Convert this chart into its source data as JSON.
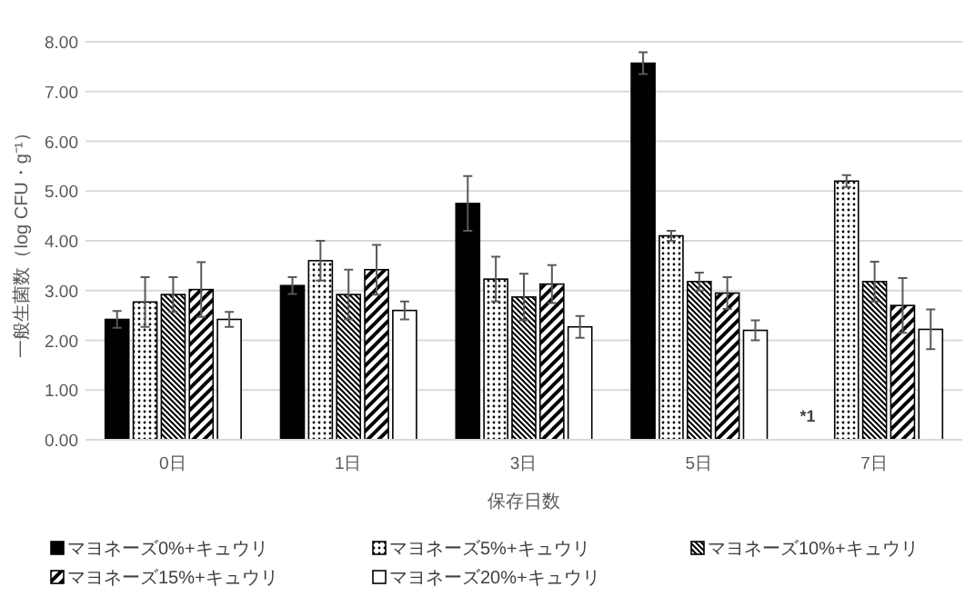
{
  "chart_data": {
    "type": "bar",
    "ylabel": "一般生菌数（log CFU・g⁻¹）",
    "xlabel": "保存日数",
    "categories": [
      "0日",
      "1日",
      "3日",
      "5日",
      "7日"
    ],
    "series": [
      {
        "name": "マヨネーズ0%+キュウリ",
        "color": "#000000",
        "values": [
          2.42,
          3.1,
          4.75,
          7.57,
          null
        ],
        "errors": [
          0.17,
          0.17,
          0.55,
          0.22,
          null
        ]
      },
      {
        "name": "マヨネーズ5%+キュウリ",
        "color": "#000000",
        "values": [
          2.77,
          3.6,
          3.23,
          4.1,
          5.2
        ],
        "errors": [
          0.5,
          0.4,
          0.45,
          0.1,
          0.12
        ]
      },
      {
        "name": "マヨネーズ10%+キュウリ",
        "color": "#000000",
        "values": [
          2.92,
          2.92,
          2.87,
          3.18,
          3.18
        ],
        "errors": [
          0.35,
          0.5,
          0.47,
          0.18,
          0.4
        ]
      },
      {
        "name": "マヨネーズ15%+キュウリ",
        "color": "#000000",
        "values": [
          3.02,
          3.42,
          3.13,
          2.95,
          2.7
        ],
        "errors": [
          0.55,
          0.5,
          0.38,
          0.32,
          0.55
        ]
      },
      {
        "name": "マヨネーズ20%+キュウリ",
        "color": "#ffffff",
        "values": [
          2.42,
          2.6,
          2.27,
          2.2,
          2.22
        ],
        "errors": [
          0.15,
          0.18,
          0.22,
          0.2,
          0.4
        ]
      }
    ],
    "ylim": [
      0,
      8
    ],
    "yticks": [
      {
        "value": 0,
        "label": "0.00"
      },
      {
        "value": 1,
        "label": "1.00"
      },
      {
        "value": 2,
        "label": "2.00"
      },
      {
        "value": 3,
        "label": "3.00"
      },
      {
        "value": 4,
        "label": "4.00"
      },
      {
        "value": 5,
        "label": "5.00"
      },
      {
        "value": 6,
        "label": "6.00"
      },
      {
        "value": 7,
        "label": "7.00"
      },
      {
        "value": 8,
        "label": "8.00"
      }
    ],
    "grid": "y",
    "legend": "bottom",
    "annotations": [
      "*1"
    ]
  }
}
